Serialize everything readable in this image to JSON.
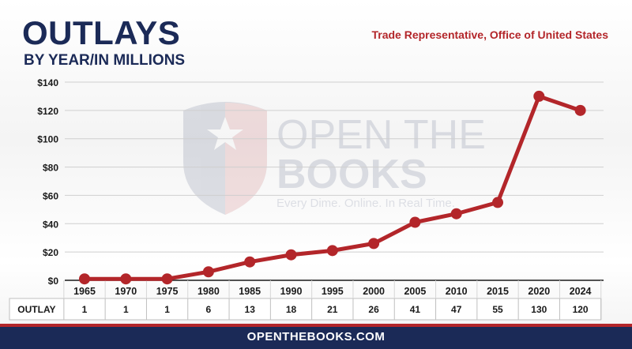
{
  "header": {
    "title": "OUTLAYS",
    "subtitle": "BY YEAR/IN MILLIONS",
    "source": "Trade Representative, Office of United States"
  },
  "watermark": {
    "line1": "OPEN THE",
    "line2": "BOOKS",
    "tagline": "Every Dime. Online. In Real Time."
  },
  "footer": {
    "text": "OPENTHEBOOKS.COM"
  },
  "colors": {
    "line": "#b3262a",
    "navy": "#1b2a57",
    "accent": "#b3262a"
  },
  "chart_data": {
    "type": "line",
    "categories": [
      "1965",
      "1970",
      "1975",
      "1980",
      "1985",
      "1990",
      "1995",
      "2000",
      "2005",
      "2010",
      "2015",
      "2020",
      "2024"
    ],
    "values": [
      1,
      1,
      1,
      6,
      13,
      18,
      21,
      26,
      41,
      47,
      55,
      130,
      120
    ],
    "yticks": [
      "$0",
      "$20",
      "$40",
      "$60",
      "$80",
      "$100",
      "$120",
      "$140"
    ],
    "ylim": [
      0,
      140
    ],
    "grid": true,
    "table": {
      "row_label": "OUTLAY",
      "values": [
        "1",
        "1",
        "1",
        "6",
        "13",
        "18",
        "21",
        "26",
        "41",
        "47",
        "55",
        "130",
        "120"
      ]
    }
  }
}
